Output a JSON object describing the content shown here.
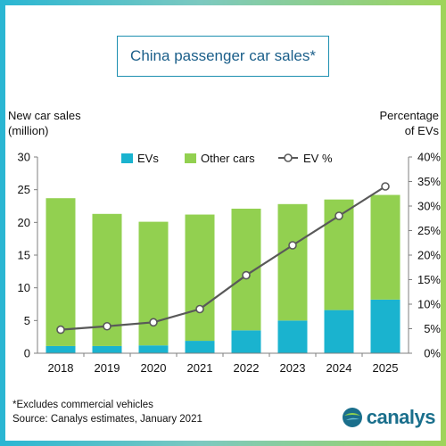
{
  "title": "China passenger car sales*",
  "y_left_title_line1": "New car sales",
  "y_left_title_line2": "(million)",
  "y_right_title_line1": "Percentage",
  "y_right_title_line2": "of EVs",
  "footnote": "*Excludes commercial vehicles",
  "source": "Source: Canalys estimates, January 2021",
  "logo_text": "canalys",
  "logo_icon": "globe-icon",
  "colors": {
    "ev": "#1ab3cf",
    "other": "#92d050",
    "line": "#595959",
    "marker_fill": "#ffffff"
  },
  "chart_data": {
    "type": "bar",
    "stacked": true,
    "categories": [
      "2018",
      "2019",
      "2020",
      "2021",
      "2022",
      "2023",
      "2024",
      "2025"
    ],
    "series": [
      {
        "name": "EVs",
        "values": [
          1.1,
          1.1,
          1.2,
          1.9,
          3.5,
          5.0,
          6.6,
          8.2
        ]
      },
      {
        "name": "Other cars",
        "values": [
          22.6,
          20.2,
          18.9,
          19.3,
          18.6,
          17.8,
          16.9,
          16.0
        ]
      }
    ],
    "line_series": {
      "name": "EV %",
      "values": [
        4.8,
        5.5,
        6.3,
        9.0,
        15.9,
        22.0,
        28.0,
        34.0
      ]
    },
    "y_left": {
      "lim": [
        0,
        30
      ],
      "ticks": [
        "0",
        "5",
        "10",
        "15",
        "20",
        "25",
        "30"
      ]
    },
    "y_right": {
      "lim": [
        0,
        40
      ],
      "ticks": [
        "0%",
        "5%",
        "10%",
        "15%",
        "20%",
        "25%",
        "30%",
        "35%",
        "40%"
      ]
    },
    "grid": false,
    "legend": "top"
  }
}
